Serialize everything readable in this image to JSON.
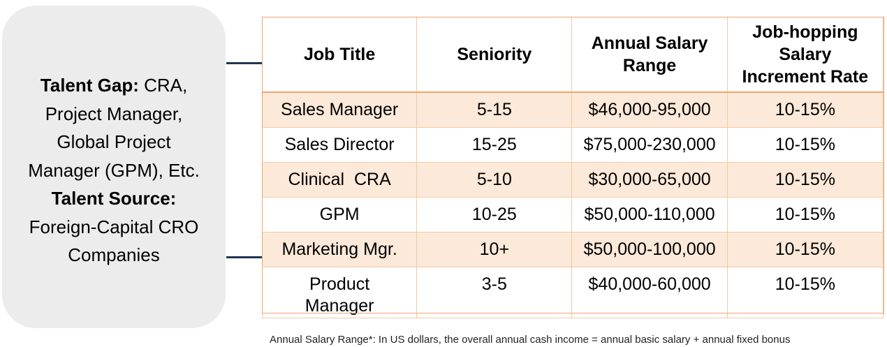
{
  "sidebar": {
    "talent_gap_label": "Talent Gap:",
    "talent_gap_line1": " CRA,",
    "talent_gap_line2": "Project Manager,",
    "talent_gap_line3": "Global Project",
    "talent_gap_line4": "Manager (GPM), Etc.",
    "talent_source_label": "Talent Source:",
    "talent_source_line1": "Foreign-Capital CRO",
    "talent_source_line2": "Companies"
  },
  "table": {
    "headers": {
      "job_title": "Job Title",
      "seniority": "Seniority",
      "salary_range_line1": "Annual Salary",
      "salary_range_line2": "Range",
      "increment_line1": "Job-hopping",
      "increment_line2": "Salary",
      "increment_line3": "Increment Rate"
    },
    "rows": [
      {
        "title": "Sales Manager",
        "title2": "",
        "seniority": "5-15",
        "salary": "$46,000-95,000",
        "increment": "10-15%"
      },
      {
        "title": "Sales Director",
        "title2": "",
        "seniority": "15-25",
        "salary": "$75,000-230,000",
        "increment": "10-15%"
      },
      {
        "title": "Clinical  CRA",
        "title2": "",
        "seniority": "5-10",
        "salary": "$30,000-65,000",
        "increment": "10-15%"
      },
      {
        "title": "GPM",
        "title2": "",
        "seniority": "10-25",
        "salary": "$50,000-110,000",
        "increment": "10-15%"
      },
      {
        "title": "Marketing Mgr.",
        "title2": "",
        "seniority": "10+",
        "salary": "$50,000-100,000",
        "increment": "10-15%"
      },
      {
        "title": "Product",
        "title2": "Manager",
        "seniority": "3-5",
        "salary": "$40,000-60,000",
        "increment": "10-15%"
      }
    ]
  },
  "footnote": "Annual Salary Range*: In US dollars, the overall annual cash income = annual basic salary + annual fixed bonus",
  "colors": {
    "row_shade": "#fce9d9",
    "border": "#f2a36a",
    "sidebox": "#ececec",
    "connector": "#1f3553"
  }
}
